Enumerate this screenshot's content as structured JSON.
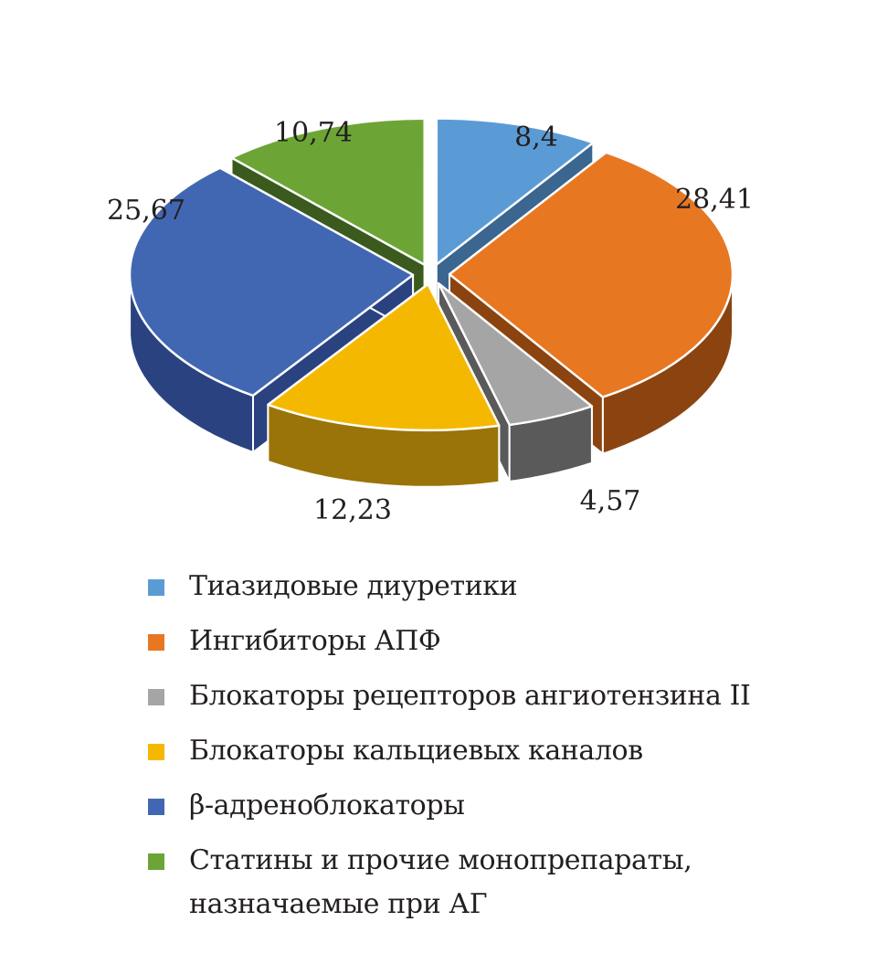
{
  "chart_data": {
    "type": "pie",
    "title": "",
    "style": "3d-exploded",
    "slices": [
      {
        "name": "Тиазидовые диуретики",
        "value": 8.4,
        "label": "8,4",
        "color": "#5b9bd5",
        "side_color": "#3a6690"
      },
      {
        "name": "Ингибиторы АПФ",
        "value": 28.41,
        "label": "28,41",
        "color": "#e87722",
        "side_color": "#8b4410"
      },
      {
        "name": "Блокаторы рецепторов ангиотензина II",
        "value": 4.57,
        "label": "4,57",
        "color": "#a5a5a5",
        "side_color": "#5a5a5a"
      },
      {
        "name": "Блокаторы кальциевых каналов",
        "value": 12.23,
        "label": "12,23",
        "color": "#f5b800",
        "side_color": "#9a7408"
      },
      {
        "name": "β-адреноблокаторы",
        "value": 25.67,
        "label": "25,67",
        "color": "#4267b2",
        "side_color": "#2a4380"
      },
      {
        "name": "Статины и прочие монопрепараты,\nназначаемые при АГ",
        "value": 10.74,
        "label": "10,74",
        "color": "#6ca535",
        "side_color": "#3a5a1e"
      }
    ],
    "legend_position": "bottom"
  }
}
